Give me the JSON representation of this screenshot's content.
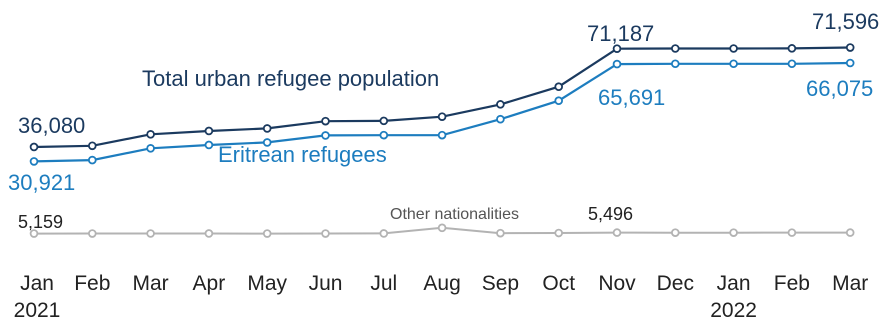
{
  "chart_data": {
    "type": "line",
    "categories": [
      "Jan",
      "Feb",
      "Mar",
      "Apr",
      "May",
      "Jun",
      "Jul",
      "Aug",
      "Sep",
      "Oct",
      "Nov",
      "Dec",
      "Jan",
      "Feb",
      "Mar"
    ],
    "year_labels": [
      {
        "index": 0,
        "text": "2021"
      },
      {
        "index": 12,
        "text": "2022"
      }
    ],
    "series": [
      {
        "name": "Total urban refugee population",
        "color": "#1b3a5f",
        "values": [
          36080,
          36500,
          40600,
          41800,
          42700,
          45300,
          45400,
          46900,
          51300,
          57600,
          71187,
          71250,
          71250,
          71300,
          71596
        ]
      },
      {
        "name": "Eritrean refugees",
        "color": "#1d7dbf",
        "values": [
          30921,
          31400,
          35600,
          36800,
          37700,
          40200,
          40300,
          40300,
          46000,
          52600,
          65691,
          65800,
          65800,
          65800,
          66075
        ]
      },
      {
        "name": "Other nationalities",
        "color": "#b3b3b3",
        "values": [
          5159,
          5170,
          5180,
          5190,
          5160,
          5170,
          5200,
          7200,
          5300,
          5350,
          5496,
          5480,
          5480,
          5490,
          5496
        ]
      }
    ],
    "data_labels": [
      {
        "series": 0,
        "index": 0,
        "text": "36,080"
      },
      {
        "series": 0,
        "index": 10,
        "text": "71,187"
      },
      {
        "series": 0,
        "index": 14,
        "text": "71,596"
      },
      {
        "series": 1,
        "index": 0,
        "text": "30,921"
      },
      {
        "series": 1,
        "index": 10,
        "text": "65,691"
      },
      {
        "series": 1,
        "index": 14,
        "text": "66,075"
      },
      {
        "series": 2,
        "index": 0,
        "text": "5,159"
      },
      {
        "series": 2,
        "index": 10,
        "text": "5,496"
      }
    ],
    "ylim": [
      0,
      75000
    ],
    "grid": false,
    "legend": "inline labels"
  }
}
